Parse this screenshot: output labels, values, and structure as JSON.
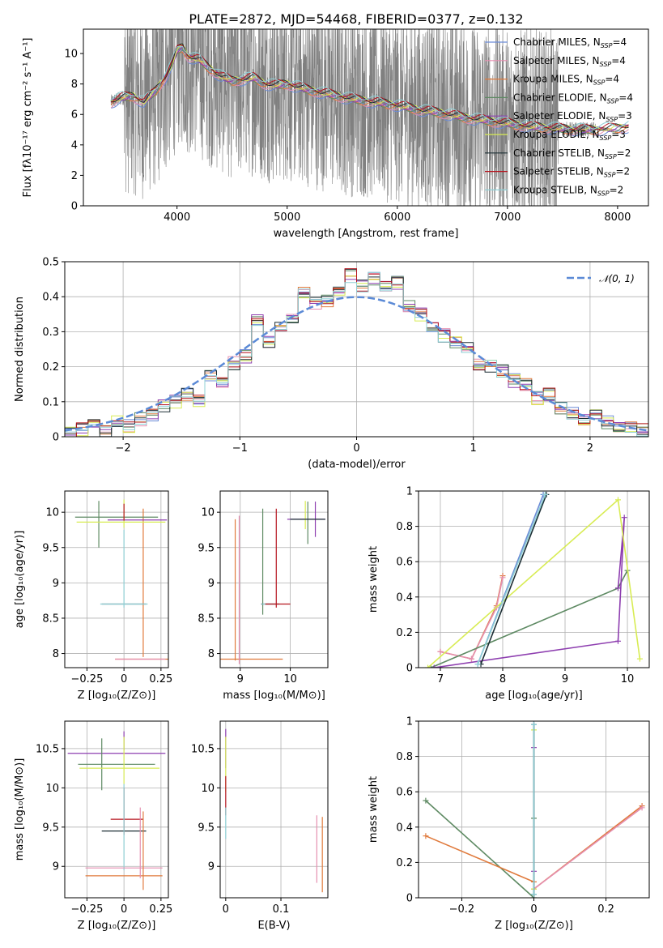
{
  "figure_title": "PLATE=2872, MJD=54468, FIBERID=0377, z=0.132",
  "series": [
    {
      "key": "ch_mil",
      "label": "Chabrier MILES, N",
      "sub": "SSP",
      "eq": "=4",
      "color": "#6b8bd6"
    },
    {
      "key": "sa_mil",
      "label": "Salpeter MILES, N",
      "sub": "SSP",
      "eq": "=4",
      "color": "#e58fb0"
    },
    {
      "key": "kr_mil",
      "label": "Kroupa MILES, N",
      "sub": "SSP",
      "eq": "=4",
      "color": "#e07a3c"
    },
    {
      "key": "ch_eld",
      "label": "Chabrier ELODIE, N",
      "sub": "SSP",
      "eq": "=4",
      "color": "#5e8a63"
    },
    {
      "key": "sa_eld",
      "label": "Salpeter ELODIE, N",
      "sub": "SSP",
      "eq": "=3",
      "color": "#8e3fb0"
    },
    {
      "key": "kr_eld",
      "label": "Kroupa ELODIE, N",
      "sub": "SSP",
      "eq": "=3",
      "color": "#d8ec54"
    },
    {
      "key": "ch_ste",
      "label": "Chabrier STELIB, N",
      "sub": "SSP",
      "eq": "=2",
      "color": "#1c2f35"
    },
    {
      "key": "sa_ste",
      "label": "Salpeter STELIB, N",
      "sub": "SSP",
      "eq": "=2",
      "color": "#b5151f"
    },
    {
      "key": "kr_ste",
      "label": "Kroupa STELIB, N",
      "sub": "SSP",
      "eq": "=2",
      "color": "#8fd0d6"
    }
  ],
  "chart_data": [
    {
      "id": "spectrum",
      "type": "line",
      "xlabel": "wavelength [Angstrom, rest frame]",
      "ylabel": "Flux [fλ10⁻¹⁷ erg cm⁻² s⁻¹ A⁻¹]",
      "xlim": [
        3150,
        8280
      ],
      "ylim": [
        0,
        11.6
      ],
      "xticks": [
        4000,
        5000,
        6000,
        7000,
        8000
      ],
      "yticks": [
        0,
        2,
        4,
        6,
        8,
        10
      ],
      "grid": false,
      "legend": "top-right",
      "data_color": "#808080",
      "model_wavelength": [
        3400,
        3500,
        3600,
        3700,
        3800,
        3900,
        3950,
        4000,
        4050,
        4100,
        4200,
        4300,
        4400,
        4500,
        4600,
        4700,
        4800,
        4900,
        5000,
        5200,
        5400,
        5600,
        5800,
        6000,
        6200,
        6400,
        6600,
        6800,
        7000,
        7200,
        7400,
        7600,
        7800,
        8000,
        8100
      ],
      "model_flux": [
        6.8,
        7.1,
        7.2,
        6.8,
        7.5,
        8.5,
        9.2,
        10.2,
        10.4,
        9.8,
        9.6,
        9.0,
        8.5,
        8.2,
        8.3,
        8.4,
        8.0,
        7.9,
        8.0,
        7.6,
        7.3,
        7.0,
        6.8,
        6.6,
        6.3,
        6.1,
        5.8,
        5.6,
        5.4,
        5.2,
        5.1,
        5.0,
        5.0,
        5.1,
        5.2
      ],
      "data_points_shown": 2400
    },
    {
      "id": "residuals",
      "type": "step",
      "xlabel": "(data-model)/error",
      "ylabel": "Normed distribution",
      "xlim": [
        -2.5,
        2.5
      ],
      "ylim": [
        0,
        0.5
      ],
      "xticks": [
        -2,
        -1,
        0,
        1,
        2
      ],
      "yticks": [
        0.0,
        0.1,
        0.2,
        0.3,
        0.4,
        0.5
      ],
      "grid": true,
      "legend": "top-right",
      "reference_label": "𝒩(0, 1)",
      "reference_color": "#5b8ad6",
      "bin_edges": [
        -2.5,
        -2.4,
        -2.3,
        -2.2,
        -2.1,
        -2.0,
        -1.9,
        -1.8,
        -1.7,
        -1.6,
        -1.5,
        -1.4,
        -1.3,
        -1.2,
        -1.1,
        -1.0,
        -0.9,
        -0.8,
        -0.7,
        -0.6,
        -0.5,
        -0.4,
        -0.3,
        -0.2,
        -0.1,
        0.0,
        0.1,
        0.2,
        0.3,
        0.4,
        0.5,
        0.6,
        0.7,
        0.8,
        0.9,
        1.0,
        1.1,
        1.2,
        1.3,
        1.4,
        1.5,
        1.6,
        1.7,
        1.8,
        1.9,
        2.0,
        2.1,
        2.2,
        2.3,
        2.4,
        2.5
      ],
      "base_hist": [
        0.01,
        0.02,
        0.03,
        0.02,
        0.04,
        0.03,
        0.05,
        0.06,
        0.09,
        0.1,
        0.12,
        0.1,
        0.17,
        0.15,
        0.21,
        0.23,
        0.33,
        0.27,
        0.32,
        0.34,
        0.41,
        0.38,
        0.39,
        0.41,
        0.46,
        0.43,
        0.45,
        0.43,
        0.44,
        0.37,
        0.35,
        0.32,
        0.29,
        0.27,
        0.25,
        0.21,
        0.2,
        0.19,
        0.16,
        0.15,
        0.11,
        0.12,
        0.08,
        0.07,
        0.05,
        0.06,
        0.04,
        0.03,
        0.03,
        0.02
      ]
    },
    {
      "id": "age_vs_Z",
      "type": "errorbar",
      "xlabel": "Z [log₁₀(Z/Z⊙)]",
      "ylabel": "age  [log₁₀(age/yr)]",
      "xlim": [
        -0.4,
        0.3
      ],
      "ylim": [
        7.8,
        10.3
      ],
      "xticks": [
        -0.25,
        0.0,
        0.25
      ],
      "yticks": [
        8.0,
        8.5,
        9.0,
        9.5,
        10.0
      ],
      "grid": true,
      "points": [
        {
          "s": "kr_mil",
          "x": 0.13,
          "y": 7.92,
          "xerr": 0.19,
          "yerr": 0.0
        },
        {
          "s": "kr_mil",
          "x": 0.13,
          "y": 9.0,
          "xerr": 0.0,
          "yerr": 1.05
        },
        {
          "s": "sa_mil",
          "x": 0.11,
          "y": 7.92,
          "xerr": 0.17,
          "yerr": 0.0
        },
        {
          "s": "ch_eld",
          "x": -0.05,
          "y": 9.93,
          "xerr": 0.28,
          "yerr": 0.0
        },
        {
          "s": "ch_eld",
          "x": -0.17,
          "y": 9.83,
          "xerr": 0.0,
          "yerr": 0.33
        },
        {
          "s": "sa_eld",
          "x": 0.09,
          "y": 9.89,
          "xerr": 0.2,
          "yerr": 0.0
        },
        {
          "s": "kr_eld",
          "x": -0.02,
          "y": 9.86,
          "xerr": 0.3,
          "yerr": 0.0
        },
        {
          "s": "kr_eld",
          "x": 0.0,
          "y": 9.98,
          "xerr": 0.0,
          "yerr": 0.2
        },
        {
          "s": "ch_ste",
          "x": 0.0,
          "y": 8.7,
          "xerr": 0.15,
          "yerr": 0.0
        },
        {
          "s": "kr_ste",
          "x": 0.0,
          "y": 8.7,
          "xerr": 0.16,
          "yerr": 0.0
        },
        {
          "s": "kr_ste",
          "x": 0.0,
          "y": 9.2,
          "xerr": 0.0,
          "yerr": 0.55
        },
        {
          "s": "sa_ste",
          "x": 0.0,
          "y": 10.0,
          "xerr": 0.0,
          "yerr": 0.12
        }
      ]
    },
    {
      "id": "age_vs_mass",
      "type": "errorbar",
      "xlabel": "mass [log₁₀(M/M⊙)]",
      "ylabel": "",
      "xlim": [
        8.6,
        10.75
      ],
      "ylim": [
        7.8,
        10.3
      ],
      "xticks": [
        9,
        10
      ],
      "yticks": [
        8.0,
        8.5,
        9.0,
        9.5,
        10.0
      ],
      "grid": true,
      "points": [
        {
          "s": "kr_mil",
          "x": 9.2,
          "y": 7.92,
          "xerr": 0.65,
          "yerr": 0.0
        },
        {
          "s": "kr_mil",
          "x": 8.9,
          "y": 8.9,
          "xerr": 0.0,
          "yerr": 1.0
        },
        {
          "s": "sa_mil",
          "x": 8.98,
          "y": 8.9,
          "xerr": 0.0,
          "yerr": 1.05
        },
        {
          "s": "ch_eld",
          "x": 9.45,
          "y": 9.3,
          "xerr": 0.0,
          "yerr": 0.75
        },
        {
          "s": "ch_eld",
          "x": 10.35,
          "y": 9.85,
          "xerr": 0.0,
          "yerr": 0.3
        },
        {
          "s": "sa_eld",
          "x": 10.32,
          "y": 9.9,
          "xerr": 0.38,
          "yerr": 0.0
        },
        {
          "s": "sa_eld",
          "x": 10.5,
          "y": 9.9,
          "xerr": 0.0,
          "yerr": 0.25
        },
        {
          "s": "kr_eld",
          "x": 10.3,
          "y": 9.96,
          "xerr": 0.0,
          "yerr": 0.2
        },
        {
          "s": "ch_ste",
          "x": 9.6,
          "y": 8.7,
          "xerr": 0.18,
          "yerr": 0.0
        },
        {
          "s": "kr_ste",
          "x": 9.55,
          "y": 8.7,
          "xerr": 0.12,
          "yerr": 0.0
        },
        {
          "s": "sa_ste",
          "x": 9.75,
          "y": 8.7,
          "xerr": 0.25,
          "yerr": 0.0
        },
        {
          "s": "sa_ste",
          "x": 9.72,
          "y": 9.35,
          "xerr": 0.0,
          "yerr": 0.7
        },
        {
          "s": "ch_ste",
          "x": 10.35,
          "y": 9.9,
          "xerr": 0.35,
          "yerr": 0.0
        }
      ]
    },
    {
      "id": "weight_vs_age",
      "type": "line",
      "xlabel": "age  [log₁₀(age/yr)]",
      "ylabel": "mass weight",
      "xlim": [
        6.65,
        10.35
      ],
      "ylim": [
        0.0,
        1.0
      ],
      "xticks": [
        7,
        8,
        9,
        10
      ],
      "yticks": [
        0.0,
        0.2,
        0.4,
        0.6,
        0.8,
        1.0
      ],
      "grid": true,
      "lines": [
        {
          "s": "kr_mil",
          "x": [
            7.0,
            7.5,
            7.9,
            8.0
          ],
          "y": [
            0.09,
            0.05,
            0.35,
            0.52
          ]
        },
        {
          "s": "sa_mil",
          "x": [
            7.0,
            7.5,
            7.9,
            8.0
          ],
          "y": [
            0.09,
            0.05,
            0.34,
            0.51
          ]
        },
        {
          "s": "ch_mil",
          "x": [
            7.6,
            8.65
          ],
          "y": [
            0.02,
            0.98
          ]
        },
        {
          "s": "ch_eld",
          "x": [
            6.85,
            9.85,
            10.0
          ],
          "y": [
            0.0,
            0.45,
            0.55
          ]
        },
        {
          "s": "sa_eld",
          "x": [
            6.9,
            9.85,
            9.95,
            9.85
          ],
          "y": [
            0.0,
            0.15,
            0.85,
            0.45
          ]
        },
        {
          "s": "kr_eld",
          "x": [
            6.8,
            9.85,
            10.2
          ],
          "y": [
            0.0,
            0.95,
            0.05
          ]
        },
        {
          "s": "ch_ste",
          "x": [
            7.65,
            8.7
          ],
          "y": [
            0.02,
            0.98
          ]
        },
        {
          "s": "kr_ste",
          "x": [
            7.6,
            8.68
          ],
          "y": [
            0.02,
            0.98
          ]
        }
      ]
    },
    {
      "id": "mass_vs_Z",
      "type": "errorbar",
      "xlabel": "Z [log₁₀(Z/Z⊙)]",
      "ylabel": "mass [log₁₀(M/M⊙)]",
      "xlim": [
        -0.4,
        0.3
      ],
      "ylim": [
        8.6,
        10.85
      ],
      "xticks": [
        -0.25,
        0.0,
        0.25
      ],
      "yticks": [
        9.0,
        9.5,
        10.0,
        10.5
      ],
      "grid": true,
      "points": [
        {
          "s": "sa_eld",
          "x": -0.05,
          "y": 10.44,
          "xerr": 0.33,
          "yerr": 0.0
        },
        {
          "s": "sa_eld",
          "x": 0.0,
          "y": 10.6,
          "xerr": 0.0,
          "yerr": 0.12
        },
        {
          "s": "ch_eld",
          "x": -0.05,
          "y": 10.3,
          "xerr": 0.26,
          "yerr": 0.0
        },
        {
          "s": "ch_eld",
          "x": -0.15,
          "y": 10.3,
          "xerr": 0.0,
          "yerr": 0.33
        },
        {
          "s": "kr_eld",
          "x": -0.03,
          "y": 10.25,
          "xerr": 0.27,
          "yerr": 0.0
        },
        {
          "s": "kr_eld",
          "x": 0.0,
          "y": 10.35,
          "xerr": 0.0,
          "yerr": 0.3
        },
        {
          "s": "sa_ste",
          "x": 0.02,
          "y": 9.6,
          "xerr": 0.11,
          "yerr": 0.0
        },
        {
          "s": "sa_ste",
          "x": 0.0,
          "y": 9.7,
          "xerr": 0.0,
          "yerr": 0.3
        },
        {
          "s": "ch_ste",
          "x": 0.0,
          "y": 9.45,
          "xerr": 0.15,
          "yerr": 0.0
        },
        {
          "s": "kr_ste",
          "x": 0.0,
          "y": 9.5,
          "xerr": 0.0,
          "yerr": 0.55
        },
        {
          "s": "sa_mil",
          "x": 0.0,
          "y": 8.98,
          "xerr": 0.26,
          "yerr": 0.0
        },
        {
          "s": "kr_mil",
          "x": 0.0,
          "y": 8.88,
          "xerr": 0.26,
          "yerr": 0.0
        },
        {
          "s": "kr_mil",
          "x": 0.13,
          "y": 9.2,
          "xerr": 0.0,
          "yerr": 0.5
        },
        {
          "s": "sa_mil",
          "x": 0.11,
          "y": 9.3,
          "xerr": 0.0,
          "yerr": 0.45
        }
      ]
    },
    {
      "id": "mass_vs_EBV",
      "type": "errorbar",
      "xlabel": "E(B-V)",
      "ylabel": "",
      "xlim": [
        -0.01,
        0.185
      ],
      "ylim": [
        8.6,
        10.85
      ],
      "xticks": [
        0.0,
        0.1
      ],
      "yticks": [
        9.0,
        9.5,
        10.0,
        10.5
      ],
      "grid": true,
      "points": [
        {
          "s": "sa_eld",
          "x": 0.0,
          "y": 10.5,
          "xerr": 0.0,
          "yerr": 0.25
        },
        {
          "s": "kr_eld",
          "x": 0.0,
          "y": 10.3,
          "xerr": 0.0,
          "yerr": 0.35
        },
        {
          "s": "sa_ste",
          "x": 0.0,
          "y": 9.9,
          "xerr": 0.0,
          "yerr": 0.25
        },
        {
          "s": "kr_ste",
          "x": 0.0,
          "y": 9.55,
          "xerr": 0.0,
          "yerr": 0.2
        },
        {
          "s": "sa_mil",
          "x": 0.165,
          "y": 9.22,
          "xerr": 0.0,
          "yerr": 0.43
        },
        {
          "s": "kr_mil",
          "x": 0.175,
          "y": 9.15,
          "xerr": 0.0,
          "yerr": 0.48
        }
      ]
    },
    {
      "id": "weight_vs_Z",
      "type": "line",
      "xlabel": "Z [log₁₀(Z/Z⊙)]",
      "ylabel": "mass weight",
      "xlim": [
        -0.32,
        0.32
      ],
      "ylim": [
        0.0,
        1.0
      ],
      "xticks": [
        -0.2,
        0.0,
        0.2
      ],
      "yticks": [
        0.0,
        0.2,
        0.4,
        0.6,
        0.8,
        1.0
      ],
      "grid": true,
      "lines": [
        {
          "s": "ch_eld",
          "x": [
            -0.3,
            0.0,
            0.0
          ],
          "y": [
            0.55,
            0.0,
            0.45
          ]
        },
        {
          "s": "kr_mil",
          "x": [
            -0.3,
            0.0,
            0.0,
            0.3
          ],
          "y": [
            0.35,
            0.09,
            0.05,
            0.52
          ]
        },
        {
          "s": "sa_mil",
          "x": [
            0.0,
            0.3
          ],
          "y": [
            0.05,
            0.51
          ]
        },
        {
          "s": "sa_eld",
          "x": [
            0.0,
            0.0
          ],
          "y": [
            0.15,
            0.85
          ]
        },
        {
          "s": "kr_eld",
          "x": [
            0.0,
            0.0
          ],
          "y": [
            0.05,
            0.95
          ]
        },
        {
          "s": "ch_mil",
          "x": [
            0.0,
            0.0
          ],
          "y": [
            0.02,
            0.98
          ]
        },
        {
          "s": "ch_ste",
          "x": [
            0.0,
            0.0
          ],
          "y": [
            0.02,
            0.98
          ]
        },
        {
          "s": "kr_ste",
          "x": [
            0.0,
            0.0
          ],
          "y": [
            0.02,
            0.98
          ]
        }
      ]
    }
  ]
}
